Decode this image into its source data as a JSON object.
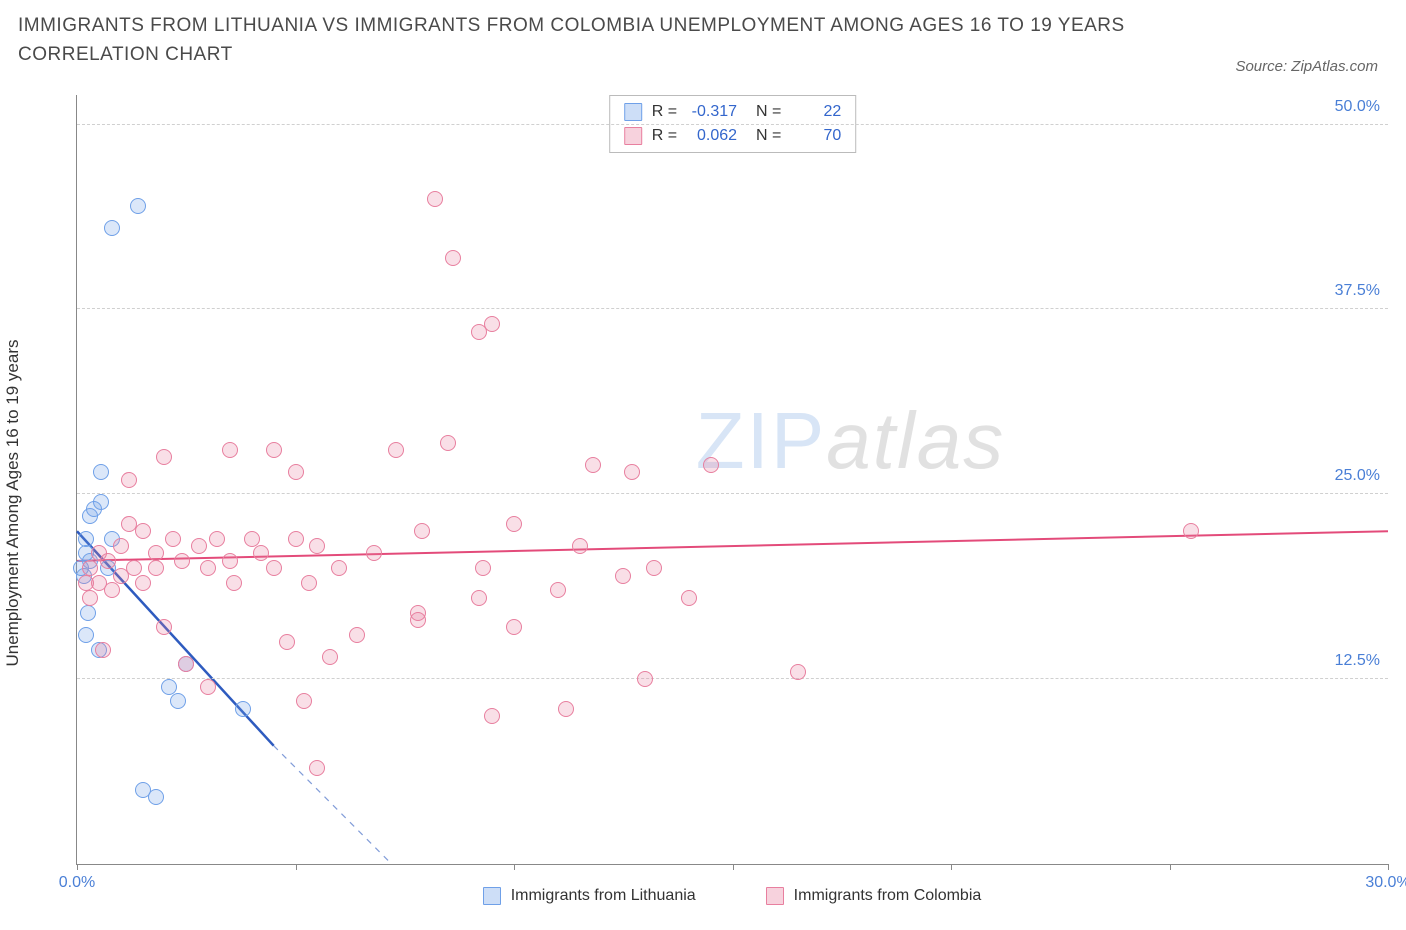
{
  "title": "IMMIGRANTS FROM LITHUANIA VS IMMIGRANTS FROM COLOMBIA UNEMPLOYMENT AMONG AGES 16 TO 19 YEARS CORRELATION CHART",
  "source": "Source: ZipAtlas.com",
  "ylabel": "Unemployment Among Ages 16 to 19 years",
  "watermark": {
    "a": "ZIP",
    "b": "atlas"
  },
  "chart": {
    "type": "scatter",
    "xlim": [
      0,
      30
    ],
    "ylim": [
      0,
      52
    ],
    "xtick_positions": [
      0,
      5,
      10,
      15,
      20,
      25,
      30
    ],
    "xtick_labels": {
      "0": "0.0%",
      "30": "30.0%"
    },
    "ytick_positions": [
      12.5,
      25.0,
      37.5,
      50.0
    ],
    "ytick_labels": [
      "12.5%",
      "25.0%",
      "37.5%",
      "50.0%"
    ],
    "grid_color": "#d0d0d0",
    "axis_color": "#888888",
    "background_color": "#ffffff",
    "label_fontsize": 17,
    "tick_fontsize": 16,
    "tick_label_color": "#4a7fd6",
    "marker_radius": 8,
    "marker_stroke_width": 1.5,
    "marker_fill_opacity": 0.25,
    "series": [
      {
        "name": "Immigrants from Lithuania",
        "color": "#6fa0e8",
        "fill": "rgba(111,160,232,0.25)",
        "R": "-0.317",
        "N": "22",
        "trend": {
          "x1": 0,
          "y1": 22.5,
          "x2": 4.5,
          "y2": 8.0,
          "color": "#2e5bbf",
          "width": 2.5,
          "ext_x2": 7.2,
          "ext_y2": 0,
          "dash": "6,6"
        },
        "points": [
          [
            0.1,
            20
          ],
          [
            0.15,
            19.5
          ],
          [
            0.2,
            21
          ],
          [
            0.2,
            22
          ],
          [
            0.25,
            17
          ],
          [
            0.3,
            20.5
          ],
          [
            0.3,
            23.5
          ],
          [
            0.4,
            24
          ],
          [
            0.5,
            14.5
          ],
          [
            0.55,
            26.5
          ],
          [
            0.55,
            24.5
          ],
          [
            0.7,
            20
          ],
          [
            0.8,
            22
          ],
          [
            1.4,
            44.5
          ],
          [
            0.8,
            43
          ],
          [
            1.5,
            5
          ],
          [
            1.8,
            4.5
          ],
          [
            2.1,
            12
          ],
          [
            2.3,
            11
          ],
          [
            2.5,
            13.5
          ],
          [
            3.8,
            10.5
          ],
          [
            0.2,
            15.5
          ]
        ]
      },
      {
        "name": "Immigrants from Colombia",
        "color": "#e87f9f",
        "fill": "rgba(232,127,159,0.25)",
        "R": "0.062",
        "N": "70",
        "trend": {
          "x1": 0,
          "y1": 20.5,
          "x2": 30,
          "y2": 22.5,
          "color": "#e34b7a",
          "width": 2
        },
        "points": [
          [
            0.2,
            19
          ],
          [
            0.3,
            20
          ],
          [
            0.3,
            18
          ],
          [
            0.5,
            21
          ],
          [
            0.5,
            19
          ],
          [
            0.7,
            20.5
          ],
          [
            0.8,
            18.5
          ],
          [
            1.0,
            21.5
          ],
          [
            1.0,
            19.5
          ],
          [
            1.2,
            23
          ],
          [
            1.3,
            20
          ],
          [
            1.5,
            22.5
          ],
          [
            1.5,
            19
          ],
          [
            1.8,
            21
          ],
          [
            1.8,
            20
          ],
          [
            2.0,
            27.5
          ],
          [
            2.2,
            22
          ],
          [
            2.4,
            20.5
          ],
          [
            2.5,
            13.5
          ],
          [
            2.8,
            21.5
          ],
          [
            3.0,
            20
          ],
          [
            3.2,
            22
          ],
          [
            3.5,
            28
          ],
          [
            3.5,
            20.5
          ],
          [
            3.6,
            19
          ],
          [
            4.0,
            22
          ],
          [
            4.2,
            21
          ],
          [
            4.5,
            28
          ],
          [
            4.5,
            20
          ],
          [
            4.8,
            15
          ],
          [
            5.0,
            22
          ],
          [
            5.0,
            26.5
          ],
          [
            5.3,
            19
          ],
          [
            5.5,
            21.5
          ],
          [
            5.5,
            6.5
          ],
          [
            5.8,
            14
          ],
          [
            6.0,
            20
          ],
          [
            6.4,
            15.5
          ],
          [
            6.8,
            21
          ],
          [
            7.3,
            28
          ],
          [
            7.8,
            16.5
          ],
          [
            7.8,
            17
          ],
          [
            7.9,
            22.5
          ],
          [
            8.2,
            45
          ],
          [
            8.5,
            28.5
          ],
          [
            8.6,
            41
          ],
          [
            9.2,
            18
          ],
          [
            9.2,
            36
          ],
          [
            9.3,
            20
          ],
          [
            9.5,
            36.5
          ],
          [
            9.5,
            10
          ],
          [
            10.0,
            23
          ],
          [
            10.0,
            16
          ],
          [
            11.0,
            18.5
          ],
          [
            11.2,
            10.5
          ],
          [
            11.5,
            21.5
          ],
          [
            11.8,
            27
          ],
          [
            12.5,
            19.5
          ],
          [
            12.7,
            26.5
          ],
          [
            13.0,
            12.5
          ],
          [
            13.2,
            20
          ],
          [
            14.0,
            18
          ],
          [
            14.5,
            27
          ],
          [
            16.5,
            13
          ],
          [
            25.5,
            22.5
          ],
          [
            5.2,
            11
          ],
          [
            3.0,
            12
          ],
          [
            2.0,
            16
          ],
          [
            1.2,
            26
          ],
          [
            0.6,
            14.5
          ]
        ]
      }
    ]
  },
  "legend_bottom": [
    {
      "label": "Immigrants from Lithuania",
      "fill": "rgba(111,160,232,0.35)",
      "border": "#6fa0e8"
    },
    {
      "label": "Immigrants from Colombia",
      "fill": "rgba(232,127,159,0.35)",
      "border": "#e87f9f"
    }
  ]
}
